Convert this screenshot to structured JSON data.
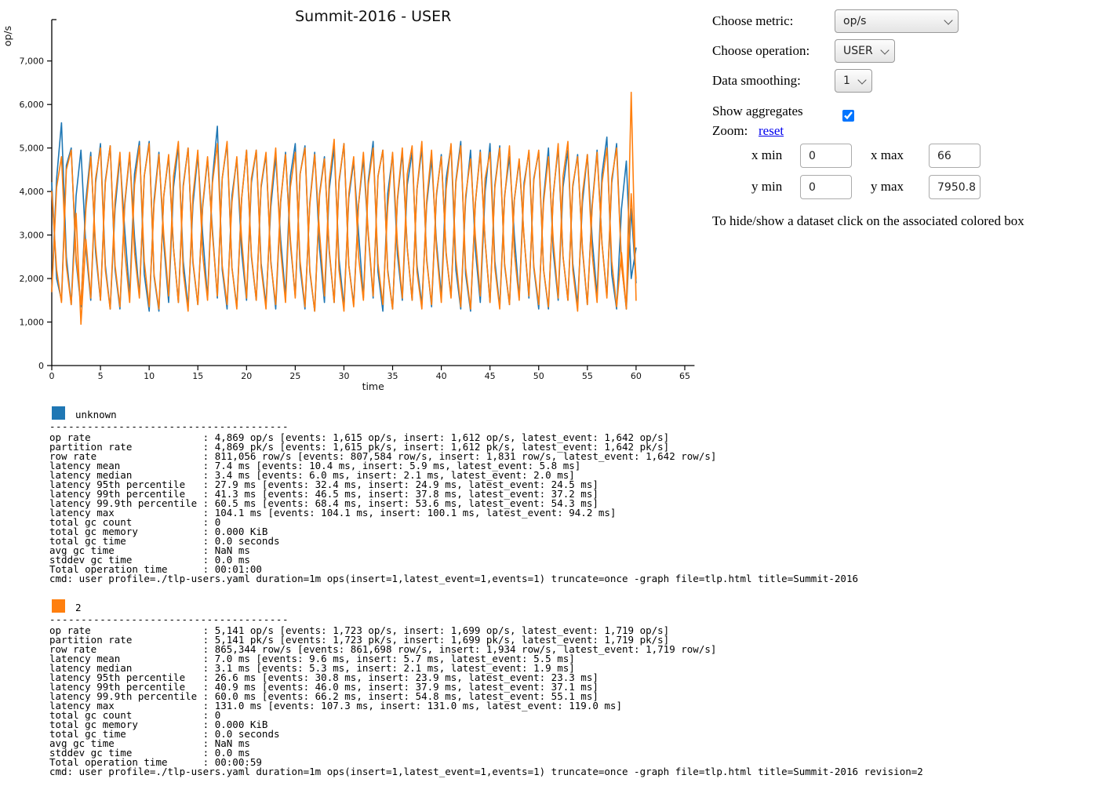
{
  "controls": {
    "metric_label": "Choose metric:",
    "metric_value": "op/s",
    "operation_label": "Choose operation:",
    "operation_value": "USER",
    "smoothing_label": "Data smoothing:",
    "smoothing_value": "1",
    "aggregates_label": "Show aggregates",
    "aggregates_checked": true,
    "zoom_label": "Zoom:",
    "zoom_reset_label": "reset",
    "xmin_label": "x min",
    "xmin_value": "0",
    "xmax_label": "x max",
    "xmax_value": "66",
    "ymin_label": "y min",
    "ymin_value": "0",
    "ymax_label": "y max",
    "ymax_value": "7950.8",
    "note": "To hide/show a dataset click on the associated colored box"
  },
  "separator": "--------------------------------------",
  "chart_data": {
    "type": "line",
    "title": "Summit-2016 - USER",
    "xlabel": "time",
    "ylabel": "op/s",
    "xlim": [
      0,
      66
    ],
    "ylim": [
      0,
      7950.8
    ],
    "x_ticks": [
      0,
      5,
      10,
      15,
      20,
      25,
      30,
      35,
      40,
      45,
      50,
      55,
      60,
      65
    ],
    "y_ticks": [
      0,
      1000,
      2000,
      3000,
      4000,
      5000,
      6000,
      7000
    ],
    "grid": false,
    "legend_position": "below",
    "x_start": 0,
    "x_step": 0.5,
    "series": [
      {
        "name": "unknown",
        "color": "#1f77b4",
        "lines": [
          [
            1700,
            4300,
            5580,
            2500,
            1400,
            3900,
            4950,
            2700,
            1500,
            4200,
            5100,
            2300,
            1300,
            3600,
            4800,
            3100,
            1600,
            4400,
            5150,
            2100,
            1250,
            3800,
            4900,
            2800,
            1450,
            4100,
            5050,
            2400,
            1350,
            3700,
            4850,
            3000,
            1550,
            4300,
            5500,
            2200,
            1300,
            3900,
            4750,
            2600,
            1500,
            4200,
            4950,
            2350,
            1400,
            3650,
            4800,
            2900,
            1600,
            4350,
            5100,
            2250,
            1300,
            3750,
            4900,
            2700,
            1450,
            4050,
            5000,
            2450,
            1350,
            3850,
            4700,
            3050,
            1550,
            4250,
            5150,
            2150,
            1250,
            3950,
            4850,
            2550,
            1500,
            4150,
            4900,
            2300,
            1400,
            3700,
            4750,
            2850,
            1600,
            4300,
            5050,
            2200,
            1300,
            3800,
            4950,
            2650,
            1450,
            4000,
            5100,
            2400,
            1350,
            3900,
            4800,
            3000,
            1550,
            4200,
            4900,
            2250,
            1300,
            3850,
            5000,
            2600,
            1500,
            4100,
            4950,
            2350,
            1400,
            3750,
            4850,
            2900,
            1600,
            4400,
            5250,
            2100,
            1300,
            3600,
            4700,
            2000,
            2700
          ],
          [
            4200,
            2000,
            1500,
            4600,
            5000,
            2400,
            1350,
            3800,
            4900,
            2600,
            1500,
            4250,
            5050,
            2200,
            1300,
            3700,
            4850,
            2950,
            1600,
            4350,
            5150,
            2050,
            1250,
            3900,
            4800,
            2700,
            1450,
            4150,
            5000,
            2350,
            1400,
            3650,
            4750,
            3100,
            1550,
            4300,
            5100,
            2250,
            1350,
            3850,
            4950,
            2500,
            1500,
            4100,
            4850,
            2400,
            1300,
            3750,
            4900,
            2800,
            1600,
            4400,
            5050,
            2150,
            1250,
            3950,
            4800,
            2600,
            1450,
            4200,
            5100,
            2300,
            1400,
            3700,
            4750,
            3000,
            1550,
            4350,
            4950,
            2200,
            1300,
            3800,
            4900,
            2700,
            1500,
            4050,
            5000,
            2450,
            1350,
            3900,
            4850,
            2550,
            1600,
            4250,
            5150,
            2100,
            1250,
            3750,
            4950,
            2850,
            1450,
            4150,
            5050,
            2300,
            1400,
            3800,
            4700,
            2950,
            1550,
            4300,
            4900,
            2200,
            1300,
            3950,
            5000,
            2500,
            1500,
            4100,
            4850,
            2650,
            1400,
            3700,
            4950,
            2800,
            1600,
            4200,
            5100,
            2350,
            1300,
            3600,
            1900
          ]
        ]
      },
      {
        "name": "2",
        "color": "#ff7f0e",
        "lines": [
          [
            1700,
            4100,
            4800,
            2300,
            1400,
            3500,
            950,
            2900,
            1550,
            4300,
            5000,
            2200,
            1300,
            3800,
            4900,
            2600,
            1450,
            4150,
            5050,
            2400,
            1350,
            3700,
            4850,
            3000,
            1600,
            4350,
            5150,
            2150,
            1250,
            3900,
            4950,
            2550,
            1500,
            4200,
            5100,
            2300,
            1400,
            3750,
            4800,
            2900,
            1550,
            4300,
            4950,
            2250,
            1300,
            3850,
            5000,
            2650,
            1450,
            4100,
            4900,
            2400,
            1350,
            3700,
            4850,
            3050,
            1600,
            4250,
            5200,
            2200,
            1250,
            3950,
            4800,
            2500,
            1500,
            4150,
            5000,
            2350,
            1400,
            3650,
            4900,
            2800,
            1550,
            4400,
            5050,
            2150,
            1300,
            3800,
            4950,
            2700,
            1450,
            4050,
            5100,
            2450,
            1350,
            3900,
            4750,
            2950,
            1600,
            4300,
            4900,
            2250,
            1300,
            3850,
            5050,
            2600,
            1500,
            4100,
            4950,
            2300,
            1400,
            3750,
            4800,
            2850,
            1550,
            4350,
            5150,
            2200,
            1250,
            3950,
            4850,
            2550,
            1450,
            4200,
            5000,
            2400,
            1350,
            2600,
            1300,
            6280,
            1500
          ],
          [
            4000,
            2200,
            1450,
            4500,
            4950,
            2500,
            1400,
            3600,
            4800,
            2750,
            1500,
            4200,
            5050,
            2300,
            1350,
            3750,
            4900,
            2600,
            1550,
            4350,
            5100,
            2100,
            1300,
            3900,
            4850,
            2700,
            1450,
            4100,
            5000,
            2400,
            1400,
            3700,
            4800,
            3000,
            1600,
            4300,
            5150,
            2250,
            1300,
            3850,
            4950,
            2550,
            1500,
            4150,
            4900,
            2350,
            1400,
            3800,
            4850,
            2900,
            1550,
            4400,
            5000,
            2200,
            1250,
            3900,
            4750,
            2650,
            1450,
            4250,
            5100,
            2300,
            1350,
            3700,
            4900,
            3050,
            1600,
            4350,
            4950,
            2150,
            1300,
            3850,
            5000,
            2700,
            1500,
            4050,
            5150,
            2400,
            1400,
            3950,
            4800,
            2600,
            1550,
            4200,
            5050,
            2250,
            1300,
            3750,
            4900,
            2850,
            1450,
            4100,
            5000,
            2350,
            1400,
            3800,
            4750,
            2950,
            1600,
            4250,
            4950,
            2200,
            1350,
            3900,
            5100,
            2500,
            1500,
            4150,
            4800,
            2700,
            1400,
            3650,
            4900,
            2800,
            1550,
            4300,
            5000,
            2300,
            1350,
            3950,
            2000
          ]
        ]
      }
    ]
  },
  "datasets": [
    {
      "label": "unknown",
      "color": "#1f77b4",
      "stats": [
        [
          "op rate",
          "4,869 op/s [events: 1,615 op/s, insert: 1,612 op/s, latest_event: 1,642 op/s]"
        ],
        [
          "partition rate",
          "4,869 pk/s [events: 1,615 pk/s, insert: 1,612 pk/s, latest_event: 1,642 pk/s]"
        ],
        [
          "row rate",
          "811,056 row/s [events: 807,584 row/s, insert: 1,831 row/s, latest_event: 1,642 row/s]"
        ],
        [
          "latency mean",
          "7.4 ms [events: 10.4 ms, insert: 5.9 ms, latest_event: 5.8 ms]"
        ],
        [
          "latency median",
          "3.4 ms [events: 6.0 ms, insert: 2.1 ms, latest_event: 2.0 ms]"
        ],
        [
          "latency 95th percentile",
          "27.9 ms [events: 32.4 ms, insert: 24.9 ms, latest_event: 24.5 ms]"
        ],
        [
          "latency 99th percentile",
          "41.3 ms [events: 46.5 ms, insert: 37.8 ms, latest_event: 37.2 ms]"
        ],
        [
          "latency 99.9th percentile",
          "60.5 ms [events: 68.4 ms, insert: 53.6 ms, latest_event: 54.3 ms]"
        ],
        [
          "latency max",
          "104.1 ms [events: 104.1 ms, insert: 100.1 ms, latest_event: 94.2 ms]"
        ],
        [
          "total gc count",
          "0"
        ],
        [
          "total gc memory",
          "0.000 KiB"
        ],
        [
          "total gc time",
          "0.0 seconds"
        ],
        [
          "avg gc time",
          "NaN ms"
        ],
        [
          "stddev gc time",
          "0.0 ms"
        ],
        [
          "Total operation time",
          "00:01:00"
        ]
      ],
      "cmd": "cmd: user profile=./tlp-users.yaml duration=1m ops(insert=1,latest_event=1,events=1) truncate=once -graph file=tlp.html title=Summit-2016"
    },
    {
      "label": "2",
      "color": "#ff7f0e",
      "stats": [
        [
          "op rate",
          "5,141 op/s [events: 1,723 op/s, insert: 1,699 op/s, latest_event: 1,719 op/s]"
        ],
        [
          "partition rate",
          "5,141 pk/s [events: 1,723 pk/s, insert: 1,699 pk/s, latest_event: 1,719 pk/s]"
        ],
        [
          "row rate",
          "865,344 row/s [events: 861,698 row/s, insert: 1,934 row/s, latest_event: 1,719 row/s]"
        ],
        [
          "latency mean",
          "7.0 ms [events: 9.6 ms, insert: 5.7 ms, latest_event: 5.5 ms]"
        ],
        [
          "latency median",
          "3.1 ms [events: 5.3 ms, insert: 2.1 ms, latest_event: 1.9 ms]"
        ],
        [
          "latency 95th percentile",
          "26.6 ms [events: 30.8 ms, insert: 23.9 ms, latest_event: 23.3 ms]"
        ],
        [
          "latency 99th percentile",
          "40.9 ms [events: 46.0 ms, insert: 37.9 ms, latest_event: 37.1 ms]"
        ],
        [
          "latency 99.9th percentile",
          "60.0 ms [events: 66.2 ms, insert: 54.8 ms, latest_event: 55.1 ms]"
        ],
        [
          "latency max",
          "131.0 ms [events: 107.3 ms, insert: 131.0 ms, latest_event: 119.0 ms]"
        ],
        [
          "total gc count",
          "0"
        ],
        [
          "total gc memory",
          "0.000 KiB"
        ],
        [
          "total gc time",
          "0.0 seconds"
        ],
        [
          "avg gc time",
          "NaN ms"
        ],
        [
          "stddev gc time",
          "0.0 ms"
        ],
        [
          "Total operation time",
          "00:00:59"
        ]
      ],
      "cmd": "cmd: user profile=./tlp-users.yaml duration=1m ops(insert=1,latest_event=1,events=1) truncate=once -graph file=tlp.html title=Summit-2016 revision=2"
    }
  ]
}
